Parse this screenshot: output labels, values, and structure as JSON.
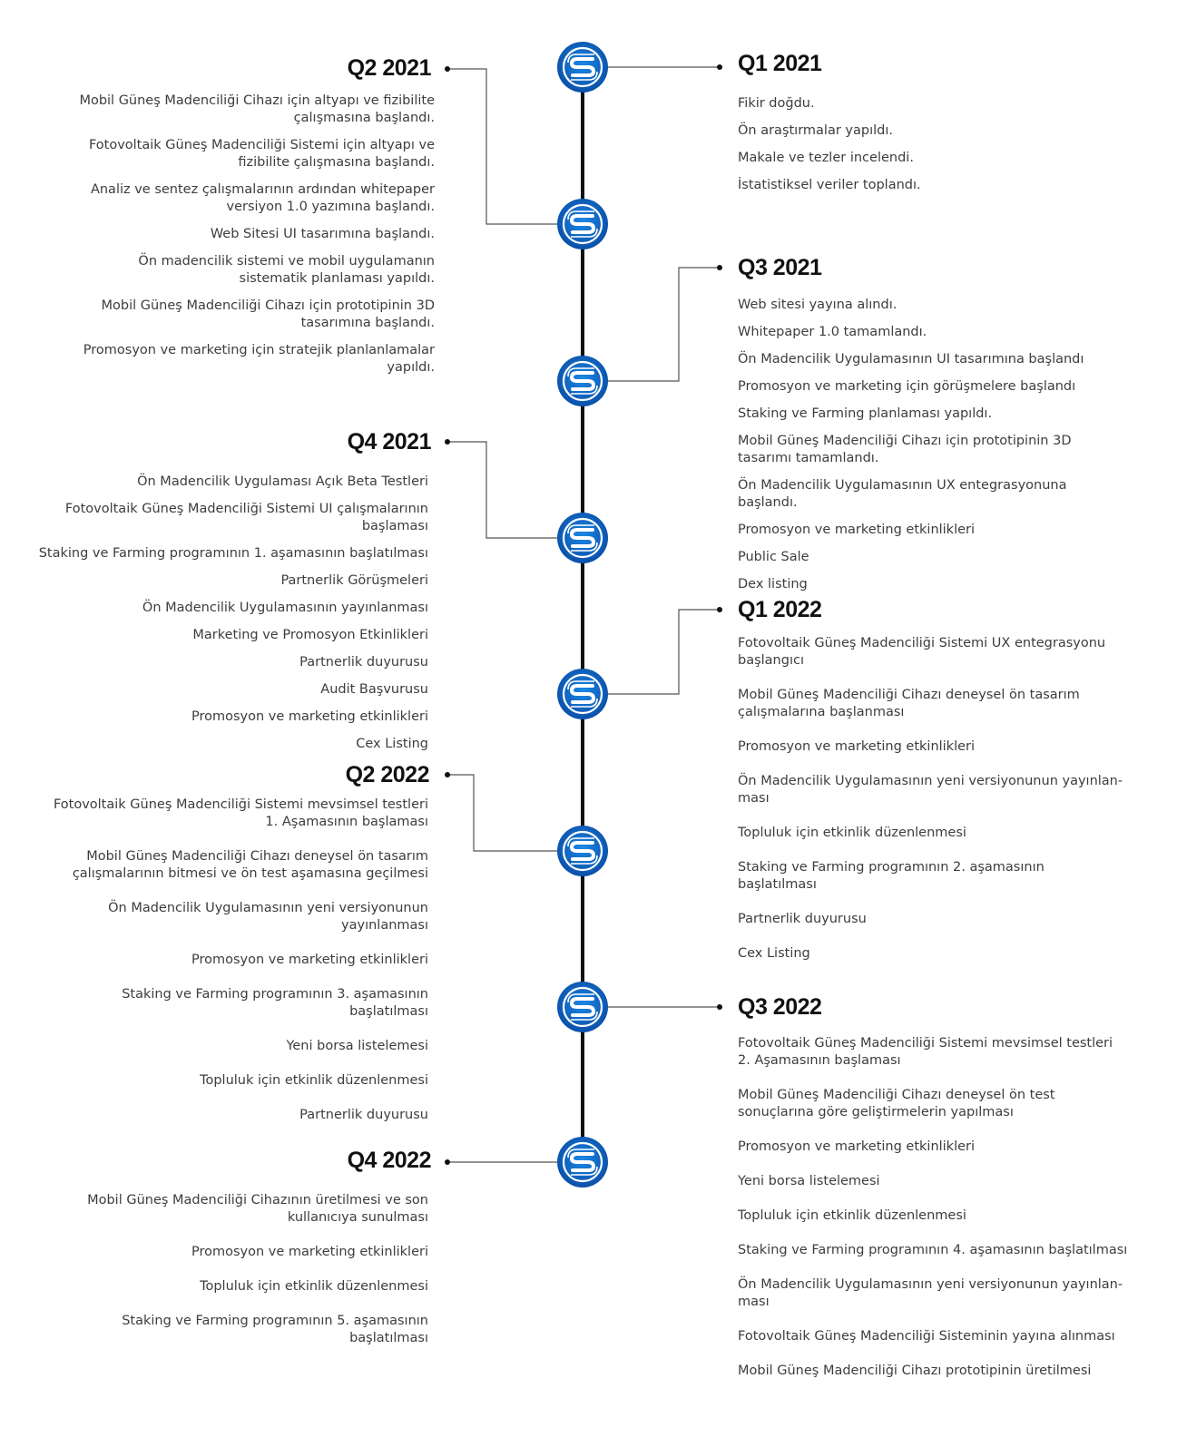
{
  "colors": {
    "line": "#111111",
    "connector": "#555555",
    "node_outer": "#0a57b6",
    "node_inner": "#0f72d4",
    "node_logo": "#ffffff"
  },
  "node_icon": "s-logo-icon",
  "phases": {
    "q1_2021": {
      "title": "Q1 2021",
      "items": [
        "Fikir doğdu.",
        "Ön araştırmalar yapıldı.",
        "Makale ve tezler incelendi.",
        "İstatistiksel veriler toplandı."
      ]
    },
    "q2_2021": {
      "title": "Q2 2021",
      "items": [
        "Mobil Güneş Madenciliği Cihazı için altyapı ve fizibilite çalışmasına başlandı.",
        "Fotovoltaik Güneş Madenciliği Sistemi için altyapı ve fizibilite çalışmasına başlandı.",
        "Analiz ve sentez çalışmalarının ardından whitepaper versiyon 1.0 yazımına başlandı.",
        "Web Sitesi UI tasarımına başlandı.",
        "Ön madencilik sistemi ve mobil uygulamanın sistematik planlaması yapıldı.",
        "Mobil Güneş Madenciliği Cihazı için prototipinin 3D tasarımına başlandı.",
        "Promosyon ve marketing için stratejik planlanlamalar yapıldı."
      ]
    },
    "q3_2021": {
      "title": "Q3 2021",
      "items": [
        "Web sitesi yayına alındı.",
        "Whitepaper 1.0 tamamlandı.",
        "Ön Madencilik Uygulamasının UI tasarımına başlandı",
        "Promosyon ve marketing için görüşmelere başlandı",
        "Staking ve Farming planlaması yapıldı.",
        "Mobil Güneş Madenciliği Cihazı için prototipinin 3D tasarımı tamamlandı.",
        "Ön Madencilik Uygulamasının UX entegrasyonuna başlandı.",
        "Promosyon ve marketing etkinlikleri",
        "Public Sale",
        "Dex listing"
      ]
    },
    "q4_2021": {
      "title": "Q4 2021",
      "items": [
        "Ön Madencilik Uygulaması Açık Beta Testleri",
        "Fotovoltaik Güneş Madenciliği Sistemi UI çalışmalarının başlaması",
        "Staking ve Farming programının 1. aşamasının başlatılması",
        "Partnerlik Görüşmeleri",
        "Ön Madencilik Uygulamasının yayınlanması",
        "Marketing ve Promosyon Etkinlikleri",
        "Partnerlik duyurusu",
        "Audit Başvurusu",
        "Promosyon ve marketing etkinlikleri",
        "Cex Listing"
      ]
    },
    "q1_2022": {
      "title": "Q1 2022",
      "items": [
        "Fotovoltaik Güneş Madenciliği Sistemi UX entegrasyonu başlangıcı",
        "Mobil Güneş Madenciliği Cihazı deneysel ön tasarım çalışmalarına başlanması",
        "Promosyon ve marketing etkinlikleri",
        "Ön Madencilik Uygulamasının yeni versiyonunun yayınlan-ması",
        "Topluluk için etkinlik düzenlenmesi",
        "Staking ve Farming programının 2. aşamasının başlatılması",
        "Partnerlik duyurusu",
        "Cex Listing"
      ]
    },
    "q2_2022": {
      "title": "Q2 2022",
      "items": [
        "Fotovoltaik Güneş Madenciliği Sistemi mevsimsel testleri 1. Aşamasının başlaması",
        "Mobil Güneş Madenciliği Cihazı deneysel ön tasarım çalışmalarının bitmesi ve ön test aşamasına geçilmesi",
        "Ön Madencilik Uygulamasının yeni versiyonunun yayınlanması",
        "Promosyon ve marketing etkinlikleri",
        "Staking ve Farming programının 3. aşamasının başlatılması",
        "Yeni borsa listelemesi",
        "Topluluk için etkinlik düzenlenmesi",
        "Partnerlik duyurusu"
      ]
    },
    "q3_2022": {
      "title": "Q3 2022",
      "items": [
        "Fotovoltaik Güneş Madenciliği Sistemi mevsimsel testleri 2. Aşamasının başlaması",
        "Mobil Güneş Madenciliği Cihazı deneysel ön test sonuçlarına göre geliştirmelerin yapılması",
        "Promosyon ve marketing etkinlikleri",
        "Yeni borsa listelemesi",
        "Topluluk için etkinlik düzenlenmesi",
        "Staking ve Farming programının 4. aşamasının başlatılması",
        "Ön Madencilik Uygulamasının yeni versiyonunun yayınlan-ması",
        "Fotovoltaik Güneş Madenciliği Sisteminin yayına alınması",
        "Mobil Güneş Madenciliği Cihazı prototipinin üretilmesi"
      ]
    },
    "q4_2022": {
      "title": "Q4 2022",
      "items": [
        "Mobil Güneş Madenciliği Cihazının üretilmesi ve son kullanıcıya sunulması",
        "Promosyon ve marketing etkinlikleri",
        "Topluluk için etkinlik düzenlenmesi",
        "Staking ve Farming programının 5. aşamasının başlatılması"
      ]
    }
  }
}
